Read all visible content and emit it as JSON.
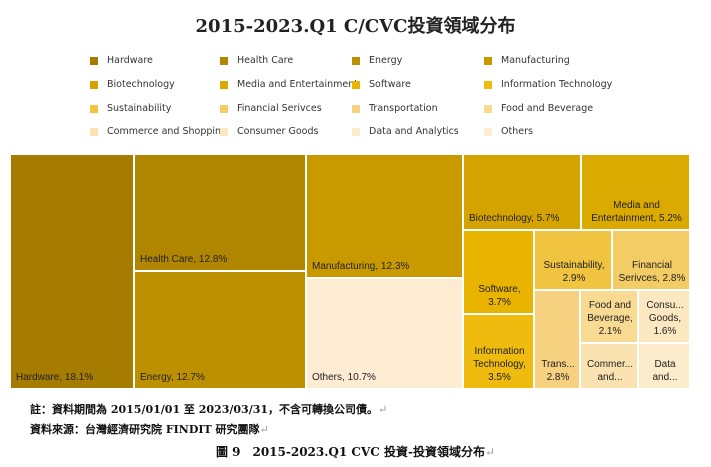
{
  "title": "2015-2023.Q1 C/CVC投資領域分布",
  "note": "註：資料期間為 2015/01/01 至 2023/03/31，不含可轉換公司債。",
  "source": "資料來源：台灣經濟研究院 FINDIT 研究團隊",
  "caption": "圖 9　2015-2023.Q1 CVC 投資-投資領域分布",
  "return_mark": "↵",
  "chart_data": {
    "type": "treemap",
    "title": "2015-2023.Q1 C/CVC投資領域分布",
    "legend_position": "top",
    "legend": [
      {
        "name": "Hardware",
        "color": "#A67C00"
      },
      {
        "name": "Health Care",
        "color": "#B08600"
      },
      {
        "name": "Energy",
        "color": "#BD9000"
      },
      {
        "name": "Manufacturing",
        "color": "#C99A00"
      },
      {
        "name": "Biotechnology",
        "color": "#D4A300"
      },
      {
        "name": "Media and Entertainment",
        "color": "#DBAA00"
      },
      {
        "name": "Software",
        "color": "#E8B400"
      },
      {
        "name": "Information Technology",
        "color": "#EEBB0E"
      },
      {
        "name": "Sustainability",
        "color": "#F0C440"
      },
      {
        "name": "Financial Serivces",
        "color": "#F3CC66"
      },
      {
        "name": "Transportation",
        "color": "#F6D280"
      },
      {
        "name": "Food and Beverage",
        "color": "#F8DA92"
      },
      {
        "name": "Commerce and Shopping",
        "color": "#FAE3B0"
      },
      {
        "name": "Consumer Goods",
        "color": "#FBE8C0"
      },
      {
        "name": "Data and Analytics",
        "color": "#FCECCB"
      },
      {
        "name": "Others",
        "color": "#FDEBD2"
      }
    ],
    "tiles": [
      {
        "name": "Hardware",
        "value": 18.1,
        "label": "Hardware, 18.1%"
      },
      {
        "name": "Health Care",
        "value": 12.8,
        "label": "Health Care, 12.8%"
      },
      {
        "name": "Energy",
        "value": 12.7,
        "label": "Energy, 12.7%"
      },
      {
        "name": "Manufacturing",
        "value": 12.3,
        "label": "Manufacturing, 12.3%"
      },
      {
        "name": "Others",
        "value": 10.7,
        "label": "Others, 10.7%"
      },
      {
        "name": "Biotechnology",
        "value": 5.7,
        "label": "Biotechnology, 5.7%"
      },
      {
        "name": "Media and Entertainment",
        "value": 5.2,
        "label": "Media and\nEntertainment, 5.2%"
      },
      {
        "name": "Software",
        "value": 3.7,
        "label": "Software,\n3.7%"
      },
      {
        "name": "Information Technology",
        "value": 3.5,
        "label": "Information\nTechnology,\n3.5%"
      },
      {
        "name": "Sustainability",
        "value": 2.9,
        "label": "Sustainability,\n2.9%"
      },
      {
        "name": "Financial Serivces",
        "value": 2.8,
        "label": "Financial\nSerivces, 2.8%"
      },
      {
        "name": "Transportation",
        "value": 2.8,
        "label": "Trans...\n2.8%"
      },
      {
        "name": "Food and Beverage",
        "value": 2.1,
        "label": "Food and\nBeverage,\n2.1%"
      },
      {
        "name": "Consumer Goods",
        "value": 1.6,
        "label": "Consu...\nGoods,\n1.6%"
      },
      {
        "name": "Commerce and Shopping",
        "value": null,
        "label": "Commer...\nand..."
      },
      {
        "name": "Data and Analytics",
        "value": null,
        "label": "Data\nand..."
      }
    ]
  }
}
